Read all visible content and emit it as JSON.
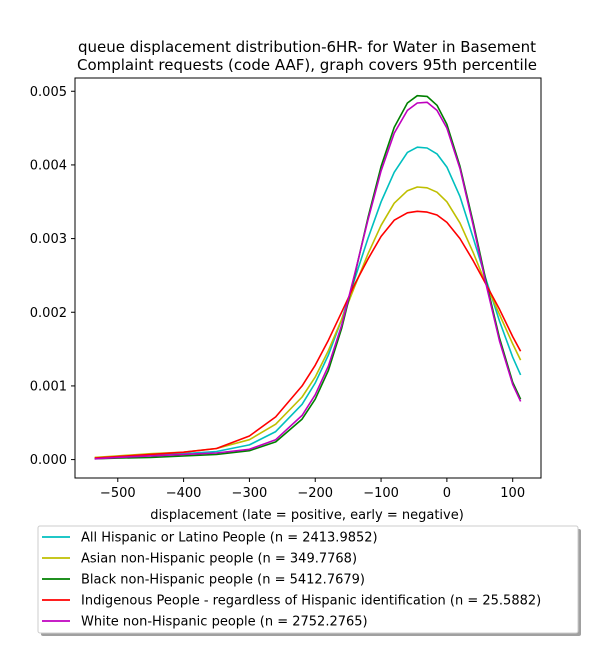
{
  "chart_data": {
    "type": "line",
    "title": [
      "queue displacement distribution-6HR-  for Water in Basement",
      "Complaint  requests (code AAF), graph covers 95th percentile"
    ],
    "xlabel": "displacement (late = positive, early = negative)",
    "ylabel": "",
    "xlim": [
      -565,
      143
    ],
    "ylim": [
      -0.00025,
      0.00518
    ],
    "x_ticks": [
      -500,
      -400,
      -300,
      -200,
      -100,
      0,
      100
    ],
    "x_tick_labels": [
      "−500",
      "−400",
      "−300",
      "−200",
      "−100",
      "0",
      "100"
    ],
    "y_ticks": [
      0,
      0.001,
      0.002,
      0.003,
      0.004,
      0.005
    ],
    "y_tick_labels": [
      "0.000",
      "0.001",
      "0.002",
      "0.003",
      "0.004",
      "0.005"
    ],
    "grid": false,
    "legend_placement": "below",
    "series": [
      {
        "name": "All Hispanic or Latino People (n = 2413.9852)",
        "color": "#00bfbf",
        "x": [
          -535,
          -500,
          -450,
          -400,
          -350,
          -300,
          -260,
          -220,
          -200,
          -180,
          -160,
          -140,
          -120,
          -100,
          -80,
          -60,
          -45,
          -30,
          -15,
          0,
          20,
          40,
          60,
          80,
          100,
          112
        ],
        "y": [
          2e-05,
          4e-05,
          6e-05,
          8e-05,
          0.00011,
          0.0002,
          0.00038,
          0.00075,
          0.00104,
          0.00142,
          0.0019,
          0.00245,
          0.003,
          0.0035,
          0.0039,
          0.00417,
          0.00424,
          0.00423,
          0.00415,
          0.00397,
          0.00357,
          0.00301,
          0.00243,
          0.00188,
          0.00139,
          0.00115
        ]
      },
      {
        "name": "Asian non-Hispanic people (n = 349.7768)",
        "color": "#bfbf00",
        "x": [
          -535,
          -500,
          -450,
          -400,
          -350,
          -300,
          -260,
          -220,
          -200,
          -180,
          -160,
          -140,
          -120,
          -100,
          -80,
          -60,
          -45,
          -30,
          -15,
          0,
          20,
          40,
          60,
          80,
          100,
          112
        ],
        "y": [
          3e-05,
          5e-05,
          8e-05,
          0.0001,
          0.00015,
          0.00027,
          0.00048,
          0.00085,
          0.00112,
          0.00148,
          0.0019,
          0.00235,
          0.00279,
          0.00318,
          0.00348,
          0.00365,
          0.0037,
          0.00369,
          0.00363,
          0.0035,
          0.00321,
          0.00281,
          0.00237,
          0.00197,
          0.00157,
          0.00135
        ]
      },
      {
        "name": "Black non-Hispanic people (n = 5412.7679)",
        "color": "#008000",
        "x": [
          -535,
          -500,
          -450,
          -400,
          -350,
          -300,
          -260,
          -220,
          -200,
          -180,
          -160,
          -140,
          -120,
          -100,
          -80,
          -60,
          -45,
          -30,
          -15,
          0,
          20,
          40,
          60,
          80,
          100,
          112
        ],
        "y": [
          1e-05,
          2e-05,
          3e-05,
          5e-05,
          7e-05,
          0.00012,
          0.00024,
          0.00055,
          0.00082,
          0.00121,
          0.00178,
          0.0025,
          0.00328,
          0.00398,
          0.00451,
          0.00484,
          0.00494,
          0.00493,
          0.00481,
          0.00455,
          0.00398,
          0.00322,
          0.0024,
          0.00165,
          0.00105,
          0.00082
        ]
      },
      {
        "name": "Indigenous People - regardless of Hispanic identification (n = 25.5882)",
        "color": "#ff0000",
        "x": [
          -535,
          -500,
          -450,
          -400,
          -350,
          -300,
          -260,
          -220,
          -200,
          -180,
          -160,
          -140,
          -120,
          -100,
          -80,
          -60,
          -45,
          -30,
          -15,
          0,
          20,
          40,
          60,
          80,
          100,
          112
        ],
        "y": [
          2e-05,
          4e-05,
          7e-05,
          0.0001,
          0.00015,
          0.00032,
          0.00058,
          0.001,
          0.00128,
          0.00162,
          0.002,
          0.00238,
          0.00272,
          0.00303,
          0.00325,
          0.00335,
          0.00337,
          0.00336,
          0.00332,
          0.00322,
          0.003,
          0.0027,
          0.00237,
          0.00204,
          0.00167,
          0.00147
        ]
      },
      {
        "name": "White non-Hispanic people (n = 2752.2765)",
        "color": "#bf00bf",
        "x": [
          -535,
          -500,
          -450,
          -400,
          -350,
          -300,
          -260,
          -220,
          -200,
          -180,
          -160,
          -140,
          -120,
          -100,
          -80,
          -60,
          -45,
          -30,
          -15,
          0,
          20,
          40,
          60,
          80,
          100,
          112
        ],
        "y": [
          1e-05,
          3e-05,
          5e-05,
          7e-05,
          9e-05,
          0.00014,
          0.00027,
          0.0006,
          0.00088,
          0.00127,
          0.00182,
          0.00252,
          0.00325,
          0.00392,
          0.00443,
          0.00474,
          0.00484,
          0.00485,
          0.00474,
          0.0045,
          0.00395,
          0.00318,
          0.00236,
          0.00161,
          0.00102,
          0.00079
        ]
      }
    ]
  }
}
